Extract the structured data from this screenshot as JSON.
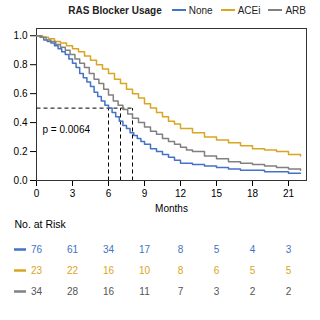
{
  "chart_data": {
    "type": "step",
    "xlabel": "Months",
    "legend": "upper right",
    "legend_title": "RAS Blocker Usage",
    "xlim": [
      0,
      22.5
    ],
    "xticks": [
      0,
      3,
      6,
      9,
      12,
      15,
      18,
      21
    ],
    "ylim": [
      0,
      1.05
    ],
    "yticks": [
      {
        "value": 0,
        "label": "0.0"
      },
      {
        "value": 0.2,
        "label": "0.2"
      },
      {
        "value": 0.4,
        "label": "0.4"
      },
      {
        "value": 0.6,
        "label": "0.6"
      },
      {
        "value": 0.8,
        "label": "0.8"
      },
      {
        "value": 1.0,
        "label": "1.0"
      }
    ],
    "series": [
      {
        "name": "None",
        "color": "#4472C4",
        "x": [
          0,
          0.3,
          0.6,
          0.9,
          1.2,
          1.5,
          1.8,
          2.1,
          2.4,
          2.7,
          3.0,
          3.3,
          3.6,
          3.9,
          4.2,
          4.5,
          4.8,
          5.1,
          5.4,
          5.7,
          6.0,
          6.3,
          6.6,
          6.9,
          7.2,
          7.5,
          7.8,
          8.1,
          8.4,
          8.7,
          9.0,
          9.5,
          10.0,
          10.5,
          11.0,
          11.5,
          12.0,
          13.0,
          14.0,
          15.0,
          16.0,
          17.0,
          18.0,
          19.0,
          20.0,
          21.0,
          22.0
        ],
        "values": [
          1.0,
          0.99,
          0.97,
          0.96,
          0.95,
          0.93,
          0.91,
          0.89,
          0.87,
          0.84,
          0.81,
          0.78,
          0.74,
          0.71,
          0.68,
          0.65,
          0.61,
          0.58,
          0.55,
          0.52,
          0.5,
          0.47,
          0.44,
          0.41,
          0.38,
          0.36,
          0.33,
          0.31,
          0.29,
          0.27,
          0.25,
          0.22,
          0.2,
          0.18,
          0.16,
          0.14,
          0.12,
          0.11,
          0.1,
          0.09,
          0.08,
          0.07,
          0.07,
          0.06,
          0.06,
          0.05,
          0.05
        ]
      },
      {
        "name": "ACEi",
        "color": "#DAA520",
        "x": [
          0,
          0.5,
          1.0,
          1.5,
          2.0,
          2.5,
          3.0,
          3.5,
          4.0,
          4.5,
          5.0,
          5.5,
          6.0,
          6.5,
          7.0,
          7.5,
          8.0,
          8.5,
          9.0,
          9.5,
          10.0,
          10.5,
          11.0,
          11.5,
          12.0,
          13.0,
          14.0,
          15.0,
          16.0,
          17.0,
          18.0,
          19.0,
          20.0,
          21.0,
          22.0
        ],
        "values": [
          1.0,
          0.99,
          0.98,
          0.96,
          0.95,
          0.93,
          0.91,
          0.89,
          0.86,
          0.83,
          0.8,
          0.77,
          0.74,
          0.7,
          0.67,
          0.63,
          0.6,
          0.57,
          0.53,
          0.5,
          0.47,
          0.44,
          0.41,
          0.39,
          0.36,
          0.33,
          0.3,
          0.28,
          0.26,
          0.24,
          0.22,
          0.21,
          0.2,
          0.18,
          0.17
        ]
      },
      {
        "name": "ARB",
        "color": "#808080",
        "x": [
          0,
          0.4,
          0.8,
          1.2,
          1.6,
          2.0,
          2.4,
          2.8,
          3.2,
          3.6,
          4.0,
          4.4,
          4.8,
          5.2,
          5.6,
          6.0,
          6.4,
          6.8,
          7.2,
          7.6,
          8.0,
          8.5,
          9.0,
          9.5,
          10.0,
          10.5,
          11.0,
          11.5,
          12.0,
          12.5,
          13.0,
          14.0,
          15.0,
          16.0,
          17.0,
          18.0,
          19.0,
          20.0,
          21.0,
          22.0
        ],
        "values": [
          1.0,
          0.99,
          0.97,
          0.96,
          0.94,
          0.92,
          0.9,
          0.87,
          0.84,
          0.81,
          0.78,
          0.74,
          0.7,
          0.67,
          0.63,
          0.59,
          0.55,
          0.52,
          0.49,
          0.46,
          0.43,
          0.4,
          0.37,
          0.34,
          0.32,
          0.29,
          0.27,
          0.25,
          0.23,
          0.21,
          0.2,
          0.17,
          0.15,
          0.13,
          0.12,
          0.11,
          0.1,
          0.09,
          0.08,
          0.07
        ]
      }
    ],
    "reference_lines": [
      {
        "x": [
          0,
          8.0
        ],
        "y": [
          0.5,
          0.5
        ],
        "color": "#000000",
        "line_style": "dashed"
      },
      {
        "x": [
          6.0,
          6.0
        ],
        "y": [
          0,
          0.5
        ],
        "color": "#000000",
        "line_style": "dashed"
      },
      {
        "x": [
          7.0,
          7.0
        ],
        "y": [
          0,
          0.5
        ],
        "color": "#000000",
        "line_style": "dashed"
      },
      {
        "x": [
          8.0,
          8.0
        ],
        "y": [
          0,
          0.5
        ],
        "color": "#000000",
        "line_style": "dashed"
      }
    ],
    "annotations": [
      {
        "text": "p = 0.0064",
        "x": 0.5,
        "y": 0.38
      }
    ],
    "risk_table": {
      "title": "No. at Risk",
      "times": [
        0,
        3,
        6,
        9,
        12,
        15,
        18,
        21
      ],
      "rows": [
        {
          "name": "None",
          "color": "#4472C4",
          "values": [
            76,
            61,
            34,
            17,
            8,
            5,
            4,
            3
          ]
        },
        {
          "name": "ACEi",
          "color": "#DAA520",
          "values": [
            23,
            22,
            16,
            10,
            8,
            6,
            5,
            5
          ]
        },
        {
          "name": "ARB",
          "color": "#555555",
          "values": [
            34,
            28,
            16,
            11,
            7,
            3,
            2,
            2
          ]
        }
      ]
    }
  }
}
